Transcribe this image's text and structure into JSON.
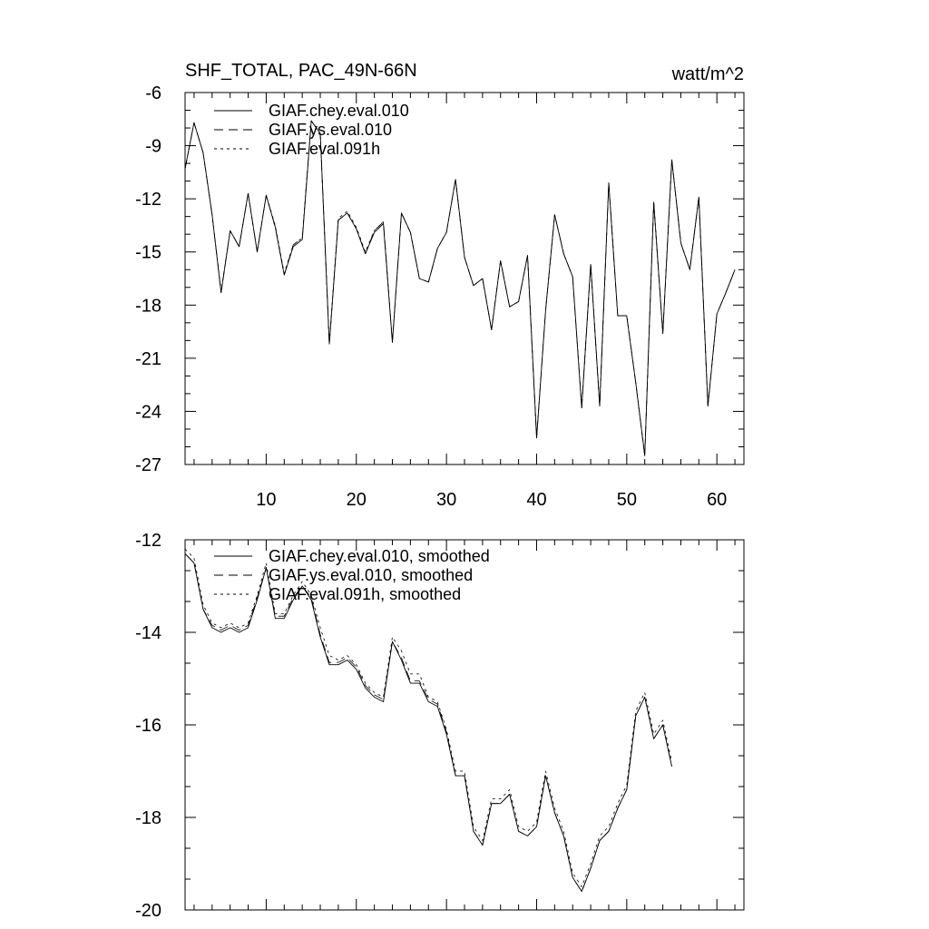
{
  "header": {
    "title": "SHF_TOTAL, PAC_49N-66N",
    "units": "watt/m^2"
  },
  "chart_data": [
    {
      "type": "line",
      "title": "SHF_TOTAL, PAC_49N-66N",
      "units": "watt/m^2",
      "xlim": [
        1,
        63
      ],
      "ylim": [
        -27,
        -6
      ],
      "x_ticks": [
        10,
        20,
        30,
        40,
        50,
        60
      ],
      "x_tick_labels": [
        "10",
        "20",
        "30",
        "40",
        "50",
        "60"
      ],
      "y_ticks": [
        -6,
        -9,
        -12,
        -15,
        -18,
        -21,
        -24,
        -27
      ],
      "y_tick_labels": [
        "-6",
        "-9",
        "-12",
        "-15",
        "-18",
        "-21",
        "-24",
        "-27"
      ],
      "legend_position": "top-left",
      "series": [
        {
          "name": "GIAF.chey.eval.010",
          "dash": "solid",
          "values": [
            -10.3,
            -7.7,
            -9.4,
            -12.9,
            -17.3,
            -13.8,
            -14.7,
            -11.7,
            -15.0,
            -11.8,
            -13.6,
            -16.3,
            -14.7,
            -14.3,
            -7.6,
            -8.3,
            -20.2,
            -13.2,
            -12.8,
            -13.7,
            -15.1,
            -13.9,
            -13.4,
            -20.1,
            -12.8,
            -13.9,
            -16.5,
            -16.7,
            -14.8,
            -13.9,
            -10.9,
            -15.3,
            -16.9,
            -16.5,
            -19.4,
            -15.5,
            -18.1,
            -17.8,
            -15.2,
            -25.5,
            -18.3,
            -12.9,
            -15.1,
            -16.4,
            -23.8,
            -15.7,
            -23.7,
            -11.1,
            -18.6,
            -18.6,
            -22.4,
            -26.5,
            -12.2,
            -19.6,
            -9.8,
            -14.5,
            -16.0,
            -11.9,
            -23.7,
            -18.5,
            -17.3,
            -16.0
          ]
        },
        {
          "name": "GIAF.ys.eval.010",
          "dash": "dashed",
          "values": [
            -10.3,
            -7.7,
            -9.4,
            -12.9,
            -17.3,
            -13.8,
            -14.7,
            -11.7,
            -15.0,
            -11.8,
            -13.6,
            -16.3,
            -14.6,
            -14.2,
            -7.6,
            -8.3,
            -20.2,
            -13.2,
            -12.8,
            -13.7,
            -15.1,
            -13.8,
            -13.3,
            -20.1,
            -12.8,
            -13.9,
            -16.5,
            -16.7,
            -14.8,
            -13.9,
            -10.9,
            -15.3,
            -16.9,
            -16.5,
            -19.4,
            -15.5,
            -18.1,
            -17.8,
            -15.2,
            -25.5,
            -18.3,
            -12.9,
            -15.1,
            -16.4,
            -23.8,
            -15.7,
            -23.7,
            -11.1,
            -18.6,
            -18.6,
            -22.4,
            -26.5,
            -12.2,
            -19.6,
            -9.8,
            -14.5,
            -16.0,
            -11.9,
            -23.7,
            -18.5,
            -17.3,
            -16.0
          ]
        },
        {
          "name": "GIAF.eval.091h",
          "dash": "dotted",
          "values": [
            -10.3,
            -7.7,
            -9.4,
            -12.9,
            -17.2,
            -13.8,
            -14.7,
            -11.7,
            -15.0,
            -11.8,
            -13.5,
            -16.2,
            -14.6,
            -14.2,
            -7.6,
            -8.3,
            -20.2,
            -13.1,
            -12.7,
            -13.6,
            -15.0,
            -13.8,
            -13.3,
            -20.1,
            -12.8,
            -13.9,
            -16.5,
            -16.7,
            -14.8,
            -13.9,
            -10.9,
            -15.3,
            -16.9,
            -16.5,
            -19.4,
            -15.5,
            -18.1,
            -17.8,
            -15.2,
            -25.5,
            -18.3,
            -12.9,
            -15.1,
            -16.4,
            -23.8,
            -15.7,
            -23.7,
            -11.1,
            -18.6,
            -18.6,
            -22.4,
            -26.5,
            -12.2,
            -19.6,
            -9.8,
            -14.5,
            -16.0,
            -11.9,
            -23.7,
            -18.5,
            -17.3,
            -16.0
          ]
        }
      ]
    },
    {
      "type": "line",
      "title": "",
      "xlim": [
        1,
        63
      ],
      "ylim": [
        -20,
        -12
      ],
      "x_ticks": [
        10,
        20,
        30,
        40,
        50,
        60
      ],
      "y_ticks": [
        -12,
        -14,
        -16,
        -18,
        -20
      ],
      "y_tick_labels": [
        "-12",
        "-14",
        "-16",
        "-18",
        "-20"
      ],
      "legend_position": "top-left",
      "series": [
        {
          "name": "GIAF.chey.eval.010, smoothed",
          "dash": "solid",
          "values": [
            -12.3,
            -12.5,
            -13.5,
            -13.9,
            -14.0,
            -13.9,
            -14.0,
            -13.9,
            -13.3,
            -12.6,
            -13.7,
            -13.7,
            -13.3,
            -13.0,
            -13.3,
            -14.1,
            -14.7,
            -14.7,
            -14.6,
            -14.8,
            -15.2,
            -15.4,
            -15.5,
            -14.2,
            -14.6,
            -15.1,
            -15.1,
            -15.5,
            -15.6,
            -16.2,
            -17.1,
            -17.1,
            -18.3,
            -18.6,
            -17.7,
            -17.7,
            -17.5,
            -18.3,
            -18.4,
            -18.2,
            -17.1,
            -17.9,
            -18.4,
            -19.3,
            -19.6,
            -19.1,
            -18.5,
            -18.3,
            -17.8,
            -17.4,
            -15.8,
            -15.4,
            -16.3,
            -16.0,
            -16.9
          ]
        },
        {
          "name": "GIAF.ys.eval.010, smoothed",
          "dash": "dashed",
          "values": [
            -12.3,
            -12.5,
            -13.5,
            -13.85,
            -13.95,
            -13.85,
            -13.95,
            -13.85,
            -13.25,
            -12.6,
            -13.65,
            -13.65,
            -13.25,
            -13.0,
            -13.25,
            -14.05,
            -14.65,
            -14.65,
            -14.55,
            -14.75,
            -15.15,
            -15.35,
            -15.45,
            -14.2,
            -14.55,
            -15.05,
            -15.05,
            -15.45,
            -15.55,
            -16.15,
            -17.1,
            -17.1,
            -18.3,
            -18.6,
            -17.7,
            -17.7,
            -17.5,
            -18.3,
            -18.4,
            -18.2,
            -17.1,
            -17.9,
            -18.4,
            -19.3,
            -19.6,
            -19.1,
            -18.5,
            -18.3,
            -17.8,
            -17.4,
            -15.8,
            -15.4,
            -16.3,
            -16.0,
            -16.9
          ]
        },
        {
          "name": "GIAF.eval.091h, smoothed",
          "dash": "dotted",
          "values": [
            -12.2,
            -12.4,
            -13.4,
            -13.8,
            -13.9,
            -13.8,
            -13.9,
            -13.8,
            -13.2,
            -12.5,
            -13.6,
            -13.6,
            -13.2,
            -12.9,
            -13.2,
            -13.9,
            -14.5,
            -14.6,
            -14.5,
            -14.7,
            -15.1,
            -15.3,
            -15.4,
            -14.1,
            -14.4,
            -14.9,
            -14.9,
            -15.4,
            -15.5,
            -16.1,
            -17.0,
            -17.0,
            -18.2,
            -18.5,
            -17.6,
            -17.6,
            -17.4,
            -18.2,
            -18.3,
            -18.1,
            -17.0,
            -17.8,
            -18.3,
            -19.2,
            -19.5,
            -19.0,
            -18.4,
            -18.2,
            -17.7,
            -17.3,
            -15.7,
            -15.3,
            -16.2,
            -15.9,
            -16.8
          ]
        }
      ]
    }
  ]
}
